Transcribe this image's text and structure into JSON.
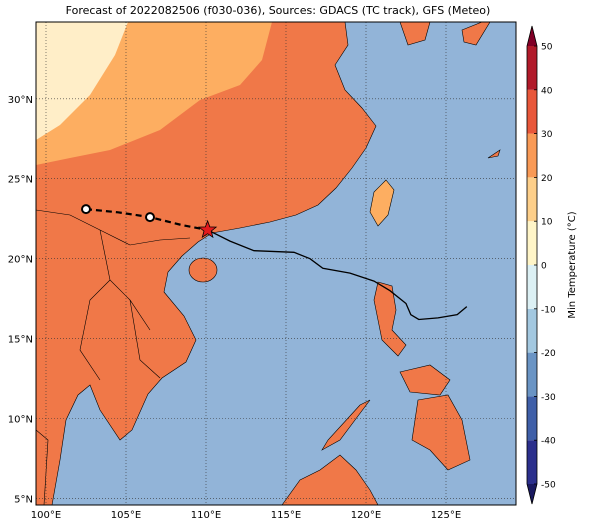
{
  "chart_data": {
    "type": "map",
    "title": "Forecast of 2022082506 (f030-036), Sources: GDACS (TC track), GFS (Meteo)",
    "xlim": [
      99.375,
      129.375
    ],
    "ylim": [
      4.6,
      34.8
    ],
    "xticks": [
      {
        "value": 100,
        "label": "100°E"
      },
      {
        "value": 105,
        "label": "105°E"
      },
      {
        "value": 110,
        "label": "110°E"
      },
      {
        "value": 115,
        "label": "115°E"
      },
      {
        "value": 120,
        "label": "120°E"
      },
      {
        "value": 125,
        "label": "125°E"
      }
    ],
    "yticks": [
      {
        "value": 5,
        "label": "5°N"
      },
      {
        "value": 10,
        "label": "10°N"
      },
      {
        "value": 15,
        "label": "15°N"
      },
      {
        "value": 20,
        "label": "20°N"
      },
      {
        "value": 25,
        "label": "25°N"
      },
      {
        "value": 30,
        "label": "30°N"
      }
    ],
    "grid": true,
    "colorbar": {
      "label": "Min Temperature (°C)",
      "lim": [
        -50,
        50
      ],
      "ticks": [
        -50,
        -40,
        -30,
        -20,
        -10,
        0,
        10,
        20,
        30,
        40,
        50
      ],
      "colors": [
        "#2b2f8c",
        "#3f5fa8",
        "#6a94c4",
        "#a3c8e0",
        "#dcf0f4",
        "#fff5c8",
        "#fdcf8a",
        "#f99a56",
        "#e8573a",
        "#b11a2a"
      ],
      "under": "#1a1a60",
      "over": "#800026"
    },
    "forecast_track": {
      "lon": [
        102.5,
        104.5,
        106.5,
        108.5,
        110.1
      ],
      "lat": [
        23.1,
        22.9,
        22.6,
        22.1,
        21.8
      ]
    },
    "past_track": {
      "lon": [
        110.1,
        111.5,
        113,
        115.5,
        116.5,
        117.3,
        119,
        120.5,
        121.5,
        122.5,
        122.8,
        123.3,
        124.5,
        125.7,
        126.3
      ],
      "lat": [
        21.8,
        21.1,
        20.5,
        20.4,
        20.0,
        19.4,
        19.1,
        18.6,
        18.0,
        17.2,
        16.5,
        16.2,
        16.3,
        16.5,
        17.0
      ]
    }
  }
}
